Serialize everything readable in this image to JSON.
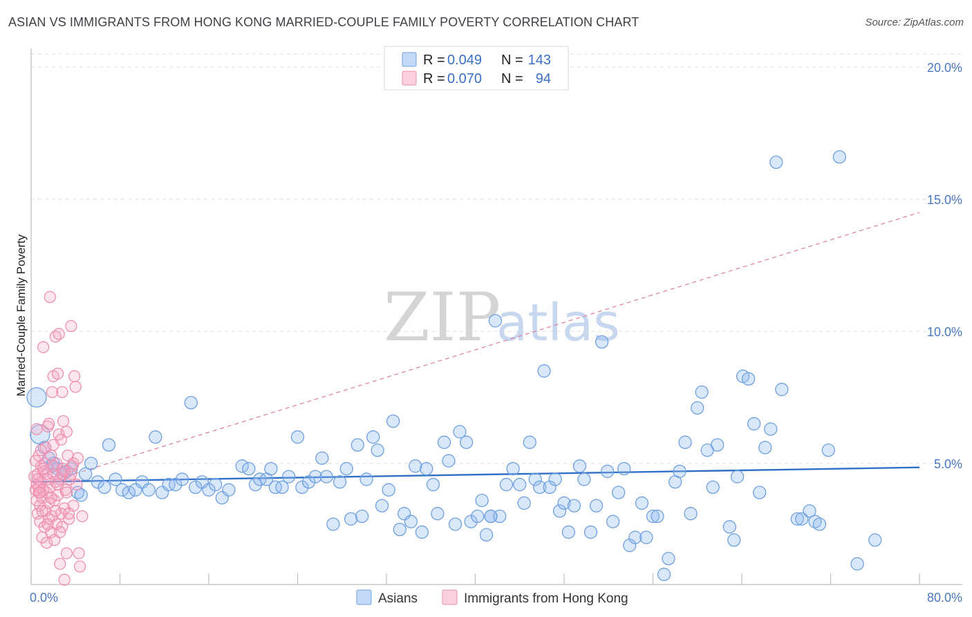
{
  "title": "ASIAN VS IMMIGRANTS FROM HONG KONG MARRIED-COUPLE FAMILY POVERTY CORRELATION CHART",
  "source": "Source: ZipAtlas.com",
  "watermark": {
    "zip": "ZIP",
    "atlas": "atlas"
  },
  "colors": {
    "blue": "#6ea0e0",
    "blue_fill": "rgba(145,185,240,0.35)",
    "blue_line": "#2f6fc8",
    "pink": "#ee8fb0",
    "pink_fill": "rgba(245,170,195,0.30)",
    "pink_line": "#e07a9a",
    "grid": "#dcdcdc",
    "axis_text": "#4a78c2"
  },
  "legend": {
    "rows": [
      {
        "r_label": "R = ",
        "r_value": "0.049",
        "n_label": "N = ",
        "n_value": "143",
        "color": "blue"
      },
      {
        "r_label": "R = ",
        "r_value": "0.070",
        "n_label": "N = ",
        "n_value": "94",
        "color": "pink"
      }
    ]
  },
  "chart_data": {
    "type": "scatter",
    "title": "ASIAN VS IMMIGRANTS FROM HONG KONG MARRIED-COUPLE FAMILY POVERTY CORRELATION CHART",
    "xlabel": "",
    "ylabel": "Married-Couple Family Poverty",
    "xlim": [
      0,
      80
    ],
    "ylim": [
      0,
      21
    ],
    "x_tick_labels": [
      "0.0%",
      "80.0%"
    ],
    "y_ticks": [
      5,
      10,
      15,
      20
    ],
    "y_tick_labels": [
      "5.0%",
      "10.0%",
      "15.0%",
      "20.0%"
    ],
    "grid": true,
    "legend_position": "bottom-center",
    "series": [
      {
        "name": "Asians",
        "color": "blue",
        "R": 0.049,
        "N": 143,
        "trend": {
          "x0": 0,
          "y0": 4.3,
          "x1": 80,
          "y1": 4.85,
          "style": "solid"
        },
        "points": [
          [
            0.5,
            7.5
          ],
          [
            0.8,
            6.1
          ],
          [
            1.2,
            5.6
          ],
          [
            1.6,
            5.2
          ],
          [
            1.8,
            4.9
          ],
          [
            2.0,
            5.0
          ],
          [
            2.4,
            4.8
          ],
          [
            2.9,
            4.6
          ],
          [
            3.2,
            4.7
          ],
          [
            3.6,
            4.8
          ],
          [
            4.2,
            3.9
          ],
          [
            4.5,
            3.8
          ],
          [
            4.9,
            4.6
          ],
          [
            5.4,
            5.0
          ],
          [
            6.0,
            4.3
          ],
          [
            6.6,
            4.1
          ],
          [
            7.0,
            5.7
          ],
          [
            7.6,
            4.4
          ],
          [
            8.2,
            4.0
          ],
          [
            8.8,
            3.9
          ],
          [
            9.4,
            4.0
          ],
          [
            10.0,
            4.3
          ],
          [
            10.6,
            4.0
          ],
          [
            11.2,
            6.0
          ],
          [
            11.8,
            3.9
          ],
          [
            12.4,
            4.2
          ],
          [
            13.0,
            4.2
          ],
          [
            13.6,
            4.4
          ],
          [
            14.4,
            7.3
          ],
          [
            14.8,
            4.1
          ],
          [
            15.4,
            4.3
          ],
          [
            16.0,
            4.0
          ],
          [
            16.6,
            4.2
          ],
          [
            17.2,
            3.7
          ],
          [
            17.8,
            4.0
          ],
          [
            19.0,
            4.9
          ],
          [
            19.6,
            4.8
          ],
          [
            20.2,
            4.2
          ],
          [
            20.6,
            4.4
          ],
          [
            21.2,
            4.4
          ],
          [
            21.6,
            4.8
          ],
          [
            22.0,
            4.1
          ],
          [
            22.6,
            4.1
          ],
          [
            23.2,
            4.5
          ],
          [
            24.0,
            6.0
          ],
          [
            24.4,
            4.1
          ],
          [
            25.0,
            4.3
          ],
          [
            25.6,
            4.5
          ],
          [
            26.2,
            5.2
          ],
          [
            26.6,
            4.5
          ],
          [
            27.2,
            2.7
          ],
          [
            27.8,
            4.3
          ],
          [
            28.4,
            4.8
          ],
          [
            28.8,
            2.9
          ],
          [
            29.4,
            5.7
          ],
          [
            29.8,
            3.0
          ],
          [
            30.2,
            4.4
          ],
          [
            30.8,
            6.0
          ],
          [
            31.2,
            5.5
          ],
          [
            31.6,
            3.4
          ],
          [
            32.2,
            4.0
          ],
          [
            32.6,
            6.6
          ],
          [
            33.2,
            2.5
          ],
          [
            33.6,
            3.1
          ],
          [
            34.2,
            2.8
          ],
          [
            34.6,
            4.9
          ],
          [
            35.2,
            2.4
          ],
          [
            35.6,
            4.8
          ],
          [
            36.2,
            4.2
          ],
          [
            36.6,
            3.1
          ],
          [
            37.2,
            5.8
          ],
          [
            37.6,
            5.1
          ],
          [
            38.2,
            2.7
          ],
          [
            38.6,
            6.2
          ],
          [
            39.2,
            5.8
          ],
          [
            39.6,
            2.8
          ],
          [
            40.2,
            3.0
          ],
          [
            40.6,
            3.6
          ],
          [
            41.0,
            2.3
          ],
          [
            41.4,
            3.0
          ],
          [
            41.8,
            10.4
          ],
          [
            42.2,
            3.0
          ],
          [
            42.8,
            4.2
          ],
          [
            43.4,
            4.8
          ],
          [
            44.0,
            4.2
          ],
          [
            44.4,
            3.5
          ],
          [
            44.9,
            5.8
          ],
          [
            45.4,
            4.4
          ],
          [
            45.8,
            4.1
          ],
          [
            46.2,
            8.5
          ],
          [
            46.7,
            4.1
          ],
          [
            47.2,
            4.4
          ],
          [
            47.6,
            3.2
          ],
          [
            48.0,
            3.5
          ],
          [
            48.4,
            2.4
          ],
          [
            48.9,
            3.4
          ],
          [
            49.4,
            4.9
          ],
          [
            49.8,
            4.4
          ],
          [
            50.4,
            2.4
          ],
          [
            50.9,
            3.4
          ],
          [
            51.4,
            9.6
          ],
          [
            51.9,
            4.7
          ],
          [
            52.4,
            2.8
          ],
          [
            52.9,
            3.9
          ],
          [
            53.4,
            4.8
          ],
          [
            53.9,
            1.9
          ],
          [
            54.4,
            2.2
          ],
          [
            55.0,
            3.5
          ],
          [
            55.4,
            2.2
          ],
          [
            56.0,
            3.0
          ],
          [
            56.4,
            3.0
          ],
          [
            57.0,
            0.8
          ],
          [
            57.4,
            1.4
          ],
          [
            58.0,
            4.3
          ],
          [
            58.4,
            4.7
          ],
          [
            58.9,
            5.8
          ],
          [
            59.4,
            3.1
          ],
          [
            60.0,
            7.1
          ],
          [
            60.4,
            7.7
          ],
          [
            60.9,
            5.5
          ],
          [
            61.4,
            4.1
          ],
          [
            61.8,
            5.7
          ],
          [
            62.9,
            2.6
          ],
          [
            63.3,
            2.1
          ],
          [
            63.6,
            4.5
          ],
          [
            64.1,
            8.3
          ],
          [
            64.6,
            8.2
          ],
          [
            65.1,
            6.5
          ],
          [
            65.6,
            3.9
          ],
          [
            66.1,
            5.6
          ],
          [
            66.6,
            6.3
          ],
          [
            67.1,
            16.4
          ],
          [
            67.6,
            7.8
          ],
          [
            69.0,
            2.9
          ],
          [
            69.4,
            2.9
          ],
          [
            70.1,
            3.2
          ],
          [
            70.6,
            2.8
          ],
          [
            71.0,
            2.7
          ],
          [
            71.8,
            5.5
          ],
          [
            72.8,
            16.6
          ],
          [
            74.4,
            1.2
          ],
          [
            76.0,
            2.1
          ],
          [
            41.4,
            3.0
          ]
        ],
        "big_points": [
          [
            0.5,
            7.5
          ],
          [
            0.8,
            6.1
          ]
        ]
      },
      {
        "name": "Immigrants from Hong Kong",
        "color": "pink",
        "R": 0.07,
        "N": 94,
        "trend": {
          "x0": 0,
          "y0": 4.1,
          "x1": 80,
          "y1": 14.5,
          "style": "dashed"
        },
        "points": [
          [
            0.3,
            4.5
          ],
          [
            0.4,
            4.0
          ],
          [
            0.4,
            5.1
          ],
          [
            0.5,
            3.6
          ],
          [
            0.5,
            4.2
          ],
          [
            0.6,
            3.1
          ],
          [
            0.6,
            4.6
          ],
          [
            0.7,
            3.9
          ],
          [
            0.7,
            5.3
          ],
          [
            0.8,
            2.8
          ],
          [
            0.8,
            3.4
          ],
          [
            0.9,
            4.3
          ],
          [
            0.9,
            4.9
          ],
          [
            1.0,
            2.2
          ],
          [
            1.0,
            3.7
          ],
          [
            1.1,
            9.4
          ],
          [
            1.1,
            4.0
          ],
          [
            1.2,
            2.6
          ],
          [
            1.2,
            4.7
          ],
          [
            1.3,
            3.2
          ],
          [
            1.3,
            5.6
          ],
          [
            1.4,
            2.0
          ],
          [
            1.4,
            3.9
          ],
          [
            1.5,
            4.4
          ],
          [
            1.5,
            6.4
          ],
          [
            1.6,
            2.9
          ],
          [
            1.6,
            3.5
          ],
          [
            1.7,
            11.3
          ],
          [
            1.7,
            4.1
          ],
          [
            1.8,
            2.4
          ],
          [
            1.8,
            5.3
          ],
          [
            1.9,
            3.0
          ],
          [
            1.9,
            7.7
          ],
          [
            2.0,
            4.6
          ],
          [
            2.0,
            8.3
          ],
          [
            2.1,
            2.1
          ],
          [
            2.1,
            3.6
          ],
          [
            2.2,
            9.8
          ],
          [
            2.2,
            4.3
          ],
          [
            2.3,
            2.7
          ],
          [
            2.3,
            5.0
          ],
          [
            2.4,
            8.4
          ],
          [
            2.4,
            3.8
          ],
          [
            2.5,
            9.9
          ],
          [
            2.5,
            6.1
          ],
          [
            2.6,
            1.2
          ],
          [
            2.6,
            4.4
          ],
          [
            2.7,
            3.1
          ],
          [
            2.7,
            5.9
          ],
          [
            2.8,
            2.6
          ],
          [
            2.8,
            7.7
          ],
          [
            2.9,
            4.8
          ],
          [
            2.9,
            6.6
          ],
          [
            3.0,
            3.3
          ],
          [
            3.0,
            0.6
          ],
          [
            3.1,
            4.0
          ],
          [
            3.2,
            1.6
          ],
          [
            3.2,
            6.2
          ],
          [
            3.3,
            5.3
          ],
          [
            3.4,
            2.9
          ],
          [
            3.5,
            4.4
          ],
          [
            3.6,
            10.2
          ],
          [
            3.7,
            4.9
          ],
          [
            3.8,
            3.4
          ],
          [
            3.9,
            8.3
          ],
          [
            4.0,
            7.9
          ],
          [
            4.1,
            4.2
          ],
          [
            4.2,
            5.2
          ],
          [
            4.3,
            1.6
          ],
          [
            4.4,
            1.1
          ],
          [
            4.6,
            3.0
          ],
          [
            0.5,
            6.3
          ],
          [
            0.6,
            4.4
          ],
          [
            0.7,
            4.1
          ],
          [
            0.9,
            5.5
          ],
          [
            1.0,
            3.2
          ],
          [
            1.2,
            5.0
          ],
          [
            1.4,
            4.6
          ],
          [
            1.6,
            6.5
          ],
          [
            1.8,
            3.7
          ],
          [
            2.0,
            4.9
          ],
          [
            2.2,
            3.2
          ],
          [
            2.4,
            4.2
          ],
          [
            2.6,
            2.4
          ],
          [
            2.8,
            4.6
          ],
          [
            3.0,
            4.7
          ],
          [
            3.2,
            3.9
          ],
          [
            3.4,
            3.1
          ],
          [
            3.6,
            4.6
          ],
          [
            3.8,
            5.0
          ],
          [
            0.8,
            3.9
          ],
          [
            1.1,
            4.8
          ],
          [
            1.5,
            2.7
          ],
          [
            2.0,
            5.7
          ]
        ]
      }
    ]
  },
  "bottom_legend": [
    {
      "label": "Asians",
      "color": "blue"
    },
    {
      "label": "Immigrants from Hong Kong",
      "color": "pink"
    }
  ]
}
